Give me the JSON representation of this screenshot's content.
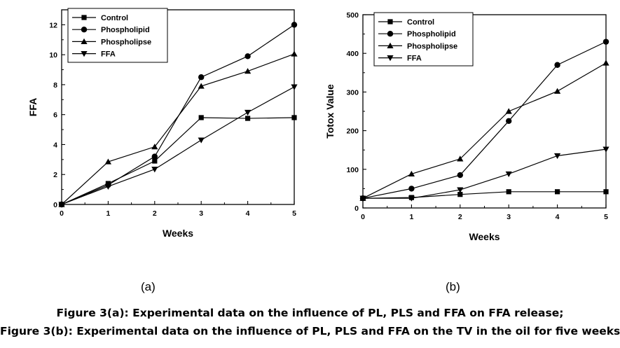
{
  "chart_data": [
    {
      "type": "line",
      "xlabel": "Weeks",
      "ylabel": "FFA",
      "xlim": [
        0,
        5
      ],
      "ylim": [
        0,
        13
      ],
      "xticks": [
        0,
        1,
        2,
        3,
        4,
        5
      ],
      "yticks": [
        0,
        2,
        4,
        6,
        8,
        10,
        12
      ],
      "legend_position": "top-left",
      "grid": false,
      "series": [
        {
          "name": "Control",
          "marker": "square",
          "x": [
            0,
            1,
            2,
            3,
            4,
            5
          ],
          "values": [
            0,
            1.4,
            2.9,
            5.8,
            5.75,
            5.8
          ]
        },
        {
          "name": "Phospholipid",
          "marker": "circle",
          "x": [
            0,
            1,
            2,
            3,
            4,
            5
          ],
          "values": [
            0,
            1.3,
            3.2,
            8.5,
            9.9,
            12.0
          ]
        },
        {
          "name": "Phospholipse",
          "marker": "triangle-up",
          "x": [
            0,
            1,
            2,
            3,
            4,
            5
          ],
          "values": [
            0,
            2.85,
            3.85,
            7.9,
            8.9,
            10.05
          ]
        },
        {
          "name": "FFA",
          "marker": "triangle-down",
          "x": [
            0,
            1,
            2,
            3,
            4,
            5
          ],
          "values": [
            0,
            1.2,
            2.35,
            4.3,
            6.15,
            7.85
          ]
        }
      ]
    },
    {
      "type": "line",
      "xlabel": "Weeks",
      "ylabel": "Totox Value",
      "xlim": [
        0,
        5
      ],
      "ylim": [
        0,
        500
      ],
      "xticks": [
        0,
        1,
        2,
        3,
        4,
        5
      ],
      "yticks": [
        0,
        100,
        200,
        300,
        400,
        500
      ],
      "legend_position": "top-left",
      "grid": false,
      "series": [
        {
          "name": "Control",
          "marker": "square",
          "x": [
            0,
            1,
            2,
            3,
            4,
            5
          ],
          "values": [
            25,
            27,
            35,
            42,
            42,
            42
          ]
        },
        {
          "name": "Phospholipid",
          "marker": "circle",
          "x": [
            0,
            1,
            2,
            3,
            4,
            5
          ],
          "values": [
            25,
            50,
            85,
            225,
            370,
            430
          ]
        },
        {
          "name": "Phospholipse",
          "marker": "triangle-up",
          "x": [
            0,
            1,
            2,
            3,
            4,
            5
          ],
          "values": [
            25,
            88,
            127,
            250,
            302,
            375
          ]
        },
        {
          "name": "FFA",
          "marker": "triangle-down",
          "x": [
            0,
            1,
            2,
            3,
            4,
            5
          ],
          "values": [
            25,
            25,
            47,
            88,
            135,
            152
          ]
        }
      ]
    }
  ],
  "panel_labels": [
    "(a)",
    "(b)"
  ],
  "captions": [
    "Figure 3(a): Experimental data on the influence of PL, PLS and FFA on FFA release;",
    "Figure 3(b): Experimental data on the influence of PL, PLS and FFA on the TV in the oil for five weeks."
  ]
}
